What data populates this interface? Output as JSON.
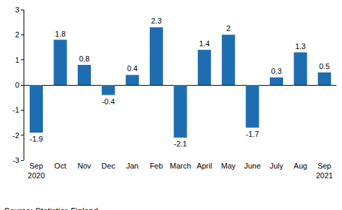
{
  "chart_data": {
    "type": "bar",
    "categories": [
      "Sep\n2020",
      "Oct",
      "Nov",
      "Dec",
      "Jan",
      "Feb",
      "March",
      "April",
      "May",
      "June",
      "July",
      "Aug",
      "Sep\n2021"
    ],
    "values": [
      -1.9,
      1.8,
      0.8,
      -0.4,
      0.4,
      2.3,
      -2.1,
      1.4,
      2.0,
      -1.7,
      0.3,
      1.3,
      0.5
    ],
    "color": "#1f6db1",
    "ylim": [
      -3,
      3
    ],
    "yticks": [
      -3,
      -2,
      -1,
      0,
      1,
      2,
      3
    ],
    "grid": false,
    "data_labels": true,
    "annotations": [
      "Source: Statistics Finland"
    ]
  }
}
